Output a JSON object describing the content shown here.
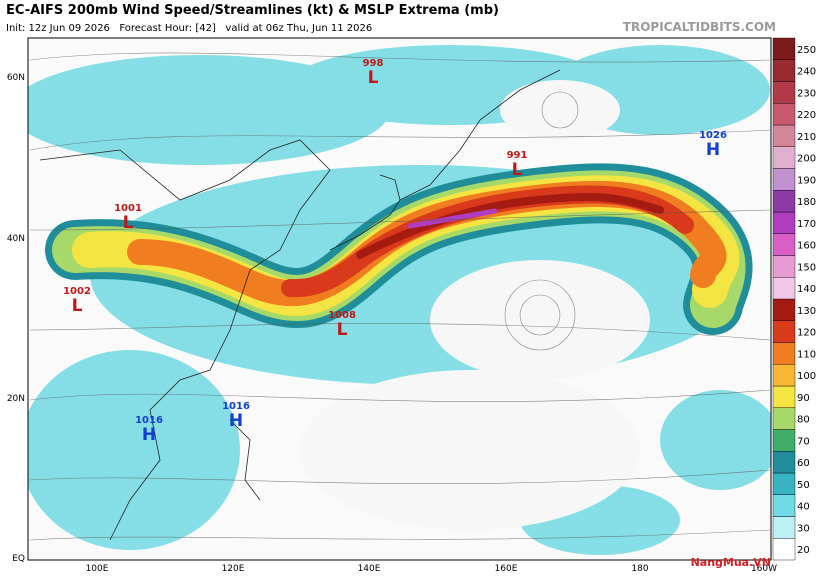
{
  "header": {
    "title": "EC-AIFS 200mb Wind Speed/Streamlines (kt) & MSLP Extrema (mb)",
    "subtitle": "Init: 12z Jun 09 2026   Forecast Hour: [42]   valid at 06z Thu, Jun 11 2026",
    "source": "TROPICALTIDBITS.COM"
  },
  "map": {
    "lat_labels": [
      "60N",
      "40N",
      "20N",
      "EQ"
    ],
    "lon_labels": [
      "100E",
      "120E",
      "140E",
      "160E",
      "180",
      "160W"
    ],
    "pressure_centers": [
      {
        "value": "998",
        "kind": "L"
      },
      {
        "value": "991",
        "kind": "L"
      },
      {
        "value": "1026",
        "kind": "H"
      },
      {
        "value": "1001",
        "kind": "L"
      },
      {
        "value": "1002",
        "kind": "L"
      },
      {
        "value": "1008",
        "kind": "L"
      },
      {
        "value": "1016",
        "kind": "H"
      },
      {
        "value": "1016",
        "kind": "H"
      }
    ]
  },
  "colorbar": {
    "labels": [
      20,
      30,
      40,
      50,
      60,
      70,
      80,
      90,
      100,
      110,
      120,
      130,
      140,
      150,
      160,
      170,
      180,
      190,
      200,
      210,
      220,
      230,
      240,
      250
    ],
    "colors": [
      "#ffffff",
      "#bdf0f5",
      "#6fdbe6",
      "#37b3c2",
      "#1f8e9a",
      "#3fae6a",
      "#a6d96a",
      "#f4e542",
      "#f7b733",
      "#f07d1f",
      "#d93a1b",
      "#a51b12",
      "#f2c6e6",
      "#e89ad4",
      "#d85fc6",
      "#b03cc0",
      "#8c3aa6",
      "#c090d0",
      "#e2b0cf",
      "#d4869a",
      "#c85a70",
      "#b23a48",
      "#962a2e",
      "#7a1c1c"
    ]
  },
  "logo": "NangMua.VN"
}
